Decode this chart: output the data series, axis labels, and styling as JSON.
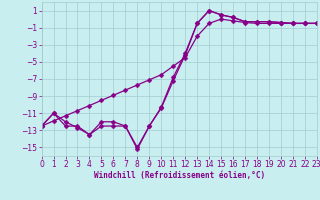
{
  "bg_color": "#c8eef0",
  "grid_color": "#a0ccd0",
  "line_color": "#880088",
  "markersize": 2.5,
  "linewidth": 0.9,
  "xlabel": "Windchill (Refroidissement éolien,°C)",
  "xlabel_fontsize": 5.5,
  "xlim": [
    0,
    23
  ],
  "ylim": [
    -16,
    2
  ],
  "xticks": [
    0,
    1,
    2,
    3,
    4,
    5,
    6,
    7,
    8,
    9,
    10,
    11,
    12,
    13,
    14,
    15,
    16,
    17,
    18,
    19,
    20,
    21,
    22,
    23
  ],
  "yticks": [
    1,
    -1,
    -3,
    -5,
    -7,
    -9,
    -11,
    -13,
    -15
  ],
  "tick_fontsize": 5.5,
  "line1_x": [
    0,
    1,
    2,
    3,
    4,
    5,
    6,
    7,
    8,
    9,
    10,
    11,
    12,
    13,
    14,
    15,
    16,
    17,
    18,
    19,
    20,
    21,
    22,
    23
  ],
  "line1_y": [
    -12.5,
    -11.0,
    -12.5,
    -12.5,
    -13.5,
    -12.5,
    -12.5,
    -12.5,
    -15.2,
    -12.5,
    -10.3,
    -6.8,
    -4.0,
    -0.5,
    1.0,
    0.5,
    0.2,
    -0.3,
    -0.3,
    -0.3,
    -0.4,
    -0.5,
    -0.5,
    -0.5
  ],
  "line2_x": [
    0,
    1,
    2,
    3,
    4,
    5,
    6,
    7,
    8,
    9,
    10,
    11,
    12,
    13,
    14,
    15,
    16,
    17,
    18,
    19,
    20,
    21,
    22,
    23
  ],
  "line2_y": [
    -12.5,
    -11.0,
    -12.0,
    -12.7,
    -13.5,
    -12.0,
    -12.0,
    -12.5,
    -15.0,
    -12.5,
    -10.4,
    -7.2,
    -4.2,
    -0.5,
    1.0,
    0.5,
    0.2,
    -0.3,
    -0.3,
    -0.3,
    -0.4,
    -0.5,
    -0.5,
    -0.5
  ],
  "line3_x": [
    0,
    1,
    2,
    3,
    4,
    5,
    6,
    7,
    8,
    9,
    10,
    11,
    12,
    13,
    14,
    15,
    16,
    17,
    18,
    19,
    20,
    21,
    22,
    23
  ],
  "line3_y": [
    -12.5,
    -11.9,
    -11.3,
    -10.7,
    -10.1,
    -9.5,
    -8.9,
    -8.3,
    -7.7,
    -7.1,
    -6.5,
    -5.5,
    -4.5,
    -2.0,
    -0.5,
    0.0,
    -0.2,
    -0.4,
    -0.5,
    -0.5,
    -0.5,
    -0.5,
    -0.5,
    -0.5
  ],
  "figsize": [
    3.2,
    2.0
  ],
  "dpi": 100
}
